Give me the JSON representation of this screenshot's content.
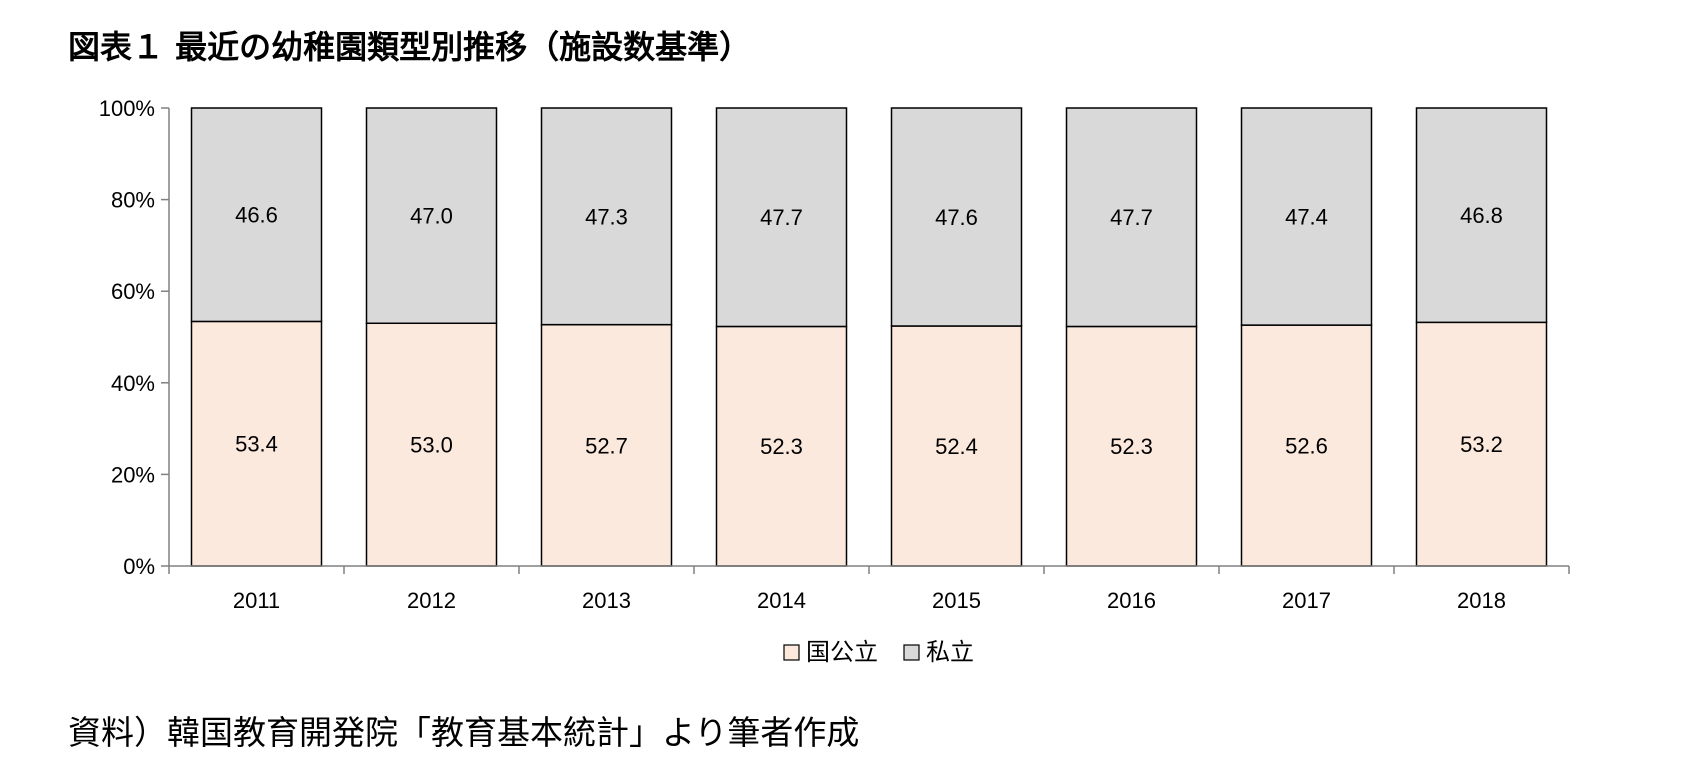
{
  "title": "図表１ 最近の幼稚園類型別推移（施設数基準）",
  "source": "資料）韓国教育開発院「教育基本統計」より筆者作成",
  "colors": {
    "public": "#fce9dd",
    "private": "#d9d9d9",
    "border": "#000000",
    "axis": "#808080"
  },
  "chart_data": {
    "type": "bar",
    "stacked": true,
    "categories": [
      "2011",
      "2012",
      "2013",
      "2014",
      "2015",
      "2016",
      "2017",
      "2018"
    ],
    "series": [
      {
        "name": "国公立",
        "values": [
          53.4,
          53.0,
          52.7,
          52.3,
          52.4,
          52.3,
          52.6,
          53.2
        ],
        "labels": [
          "53.4",
          "53.0",
          "52.7",
          "52.3",
          "52.4",
          "52.3",
          "52.6",
          "53.2"
        ],
        "color": "#fce9dd"
      },
      {
        "name": "私立",
        "values": [
          46.6,
          47.0,
          47.3,
          47.7,
          47.6,
          47.7,
          47.4,
          46.8
        ],
        "labels": [
          "46.6",
          "47.0",
          "47.3",
          "47.7",
          "47.6",
          "47.7",
          "47.4",
          "46.8"
        ],
        "color": "#d9d9d9"
      }
    ],
    "yticks": [
      "0%",
      "20%",
      "40%",
      "60%",
      "80%",
      "100%"
    ],
    "ylim": [
      0,
      100
    ],
    "legend_position": "bottom"
  }
}
